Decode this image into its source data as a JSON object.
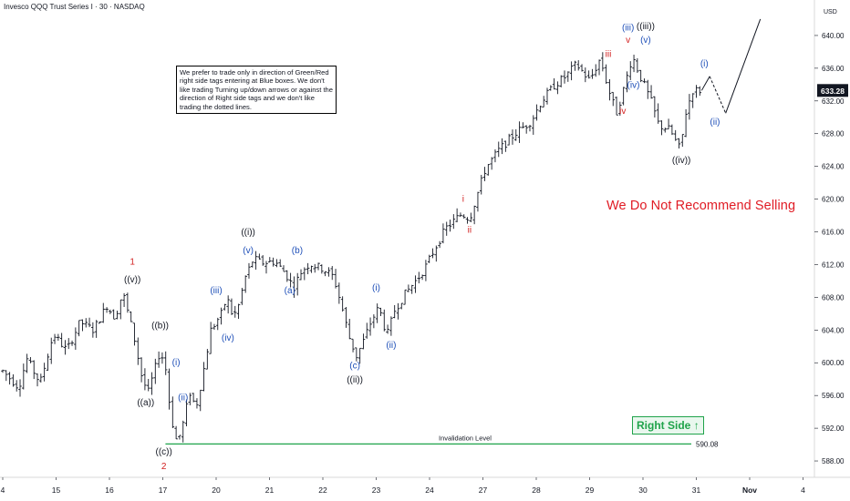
{
  "header": {
    "title": "Invesco QQQ Trust Series I · 30 · NASDAQ"
  },
  "note_box": {
    "text": "We prefer to trade only in direction of Green/Red right side tags entering at Blue boxes. We don't like trading Turning up/down arrows or against the direction of Right side tags and we don't like trading the dotted lines."
  },
  "overlays": {
    "warning": "We Do Not Recommend Selling",
    "right_side": "Right Side",
    "arrow_icon": "up-arrow-icon",
    "invalidation_label": "Invalidation Level"
  },
  "colors": {
    "black": "#131722",
    "blue": "#1e4fb8",
    "red": "#d21f1f",
    "green": "#1fa34a",
    "price_badge": "#131722"
  },
  "chart_data": {
    "type": "candlestick",
    "currency": "USD",
    "ylim": [
      586,
      643
    ],
    "y_ticks": [
      588,
      592,
      596,
      600,
      604,
      608,
      612,
      616,
      620,
      624,
      628,
      632,
      636,
      640
    ],
    "y_tick_labels": [
      "588.00",
      "592.00",
      "596.00",
      "600.00",
      "604.00",
      "608.00",
      "612.00",
      "616.00",
      "620.00",
      "624.00",
      "628.00",
      "632.00",
      "636.00",
      "640.00"
    ],
    "x_ticks": [
      "4",
      "15",
      "16",
      "17",
      "20",
      "21",
      "22",
      "23",
      "24",
      "27",
      "28",
      "29",
      "30",
      "31",
      "Nov",
      "4"
    ],
    "last_price": 633.28,
    "last_price_label": "633.28",
    "invalidation": {
      "price": 590.08,
      "label": "590.08"
    },
    "price_path": [
      [
        0.0,
        599.0
      ],
      [
        0.3,
        597.0
      ],
      [
        0.45,
        600.5
      ],
      [
        0.7,
        597.5
      ],
      [
        0.95,
        603.5
      ],
      [
        1.2,
        601.5
      ],
      [
        1.45,
        605.0
      ],
      [
        1.7,
        604.0
      ],
      [
        1.95,
        607.0
      ],
      [
        2.1,
        605.5
      ],
      [
        2.25,
        608.6
      ],
      [
        2.45,
        603.5
      ],
      [
        2.6,
        598.5
      ],
      [
        2.72,
        596.2
      ],
      [
        2.95,
        601.5
      ],
      [
        3.05,
        599.5
      ],
      [
        3.15,
        593.5
      ],
      [
        3.27,
        590.1
      ],
      [
        3.4,
        593.0
      ],
      [
        3.5,
        596.5
      ],
      [
        3.62,
        594.5
      ],
      [
        3.75,
        598.5
      ],
      [
        3.9,
        604.0
      ],
      [
        4.1,
        606.0
      ],
      [
        4.2,
        608.0
      ],
      [
        4.32,
        605.5
      ],
      [
        4.42,
        607.0
      ],
      [
        4.55,
        610.5
      ],
      [
        4.7,
        612.7
      ],
      [
        4.85,
        612.2
      ],
      [
        5.1,
        612.4
      ],
      [
        5.3,
        610.9
      ],
      [
        5.45,
        609.2
      ],
      [
        5.6,
        611.2
      ],
      [
        5.75,
        612.1
      ],
      [
        6.0,
        611.5
      ],
      [
        6.2,
        610.5
      ],
      [
        6.35,
        607.0
      ],
      [
        6.5,
        603.0
      ],
      [
        6.63,
        600.8
      ],
      [
        6.75,
        602.5
      ],
      [
        6.9,
        605.0
      ],
      [
        7.05,
        606.8
      ],
      [
        7.2,
        603.3
      ],
      [
        7.35,
        606.5
      ],
      [
        7.55,
        608.5
      ],
      [
        7.8,
        610.5
      ],
      [
        7.95,
        612.0
      ],
      [
        8.1,
        614.0
      ],
      [
        8.3,
        616.4
      ],
      [
        8.6,
        618.2
      ],
      [
        8.75,
        617.6
      ],
      [
        9.05,
        623.8
      ],
      [
        9.3,
        626.0
      ],
      [
        9.6,
        628.0
      ],
      [
        9.9,
        629.5
      ],
      [
        10.1,
        632.0
      ],
      [
        10.35,
        634.0
      ],
      [
        10.55,
        635.0
      ],
      [
        10.75,
        636.5
      ],
      [
        11.0,
        634.5
      ],
      [
        11.2,
        637.2
      ],
      [
        11.35,
        633.5
      ],
      [
        11.5,
        630.5
      ],
      [
        11.62,
        633.0
      ],
      [
        11.8,
        637.5
      ],
      [
        11.95,
        635.0
      ],
      [
        12.15,
        632.0
      ],
      [
        12.3,
        629.0
      ],
      [
        12.5,
        628.5
      ],
      [
        12.7,
        626.0
      ],
      [
        12.8,
        630.5
      ],
      [
        12.93,
        633.3
      ],
      [
        13.1,
        633.28
      ]
    ],
    "projection": {
      "solid1": [
        [
          13.1,
          633.28
        ],
        [
          13.25,
          635.0
        ]
      ],
      "dotted": [
        [
          13.25,
          635.0
        ],
        [
          13.55,
          630.5
        ]
      ],
      "solid2": [
        [
          13.55,
          630.5
        ],
        [
          14.2,
          642.0
        ]
      ]
    },
    "labels": [
      {
        "text": "1",
        "x": 2.43,
        "y": 612.0,
        "color": "red"
      },
      {
        "text": "((v))",
        "x": 2.43,
        "y": 609.8,
        "color": "black"
      },
      {
        "text": "((b))",
        "x": 2.95,
        "y": 604.2,
        "color": "black"
      },
      {
        "text": "((a))",
        "x": 2.68,
        "y": 594.8,
        "color": "black"
      },
      {
        "text": "((c))",
        "x": 3.02,
        "y": 588.8,
        "color": "black"
      },
      {
        "text": "2",
        "x": 3.02,
        "y": 587.0,
        "color": "red"
      },
      {
        "text": "(i)",
        "x": 3.25,
        "y": 599.7,
        "color": "blue"
      },
      {
        "text": "(ii)",
        "x": 3.38,
        "y": 595.4,
        "color": "blue"
      },
      {
        "text": "(iii)",
        "x": 4.0,
        "y": 608.5,
        "color": "blue"
      },
      {
        "text": "(iv)",
        "x": 4.22,
        "y": 602.7,
        "color": "blue"
      },
      {
        "text": "((i))",
        "x": 4.6,
        "y": 615.6,
        "color": "black"
      },
      {
        "text": "(v)",
        "x": 4.6,
        "y": 613.4,
        "color": "blue"
      },
      {
        "text": "(b)",
        "x": 5.52,
        "y": 613.4,
        "color": "blue"
      },
      {
        "text": "(a)",
        "x": 5.38,
        "y": 608.5,
        "color": "blue"
      },
      {
        "text": "(c)",
        "x": 6.6,
        "y": 599.3,
        "color": "blue"
      },
      {
        "text": "((ii))",
        "x": 6.6,
        "y": 597.6,
        "color": "black"
      },
      {
        "text": "(i)",
        "x": 7.0,
        "y": 608.8,
        "color": "blue"
      },
      {
        "text": "(ii)",
        "x": 7.28,
        "y": 601.8,
        "color": "blue"
      },
      {
        "text": "i",
        "x": 8.63,
        "y": 619.7,
        "color": "red"
      },
      {
        "text": "ii",
        "x": 8.75,
        "y": 615.9,
        "color": "red"
      },
      {
        "text": "iii",
        "x": 11.35,
        "y": 637.4,
        "color": "red"
      },
      {
        "text": "v",
        "x": 11.72,
        "y": 639.1,
        "color": "red"
      },
      {
        "text": "iv",
        "x": 11.62,
        "y": 630.4,
        "color": "red"
      },
      {
        "text": "(iii)",
        "x": 11.72,
        "y": 640.6,
        "color": "blue"
      },
      {
        "text": "((iii))",
        "x": 12.05,
        "y": 640.8,
        "color": "black"
      },
      {
        "text": "(v)",
        "x": 12.05,
        "y": 639.1,
        "color": "blue"
      },
      {
        "text": "(iv)",
        "x": 11.82,
        "y": 633.6,
        "color": "blue"
      },
      {
        "text": "((iv))",
        "x": 12.72,
        "y": 624.4,
        "color": "black"
      },
      {
        "text": "(i)",
        "x": 13.15,
        "y": 636.2,
        "color": "blue"
      },
      {
        "text": "(ii)",
        "x": 13.35,
        "y": 629.1,
        "color": "blue"
      }
    ]
  }
}
